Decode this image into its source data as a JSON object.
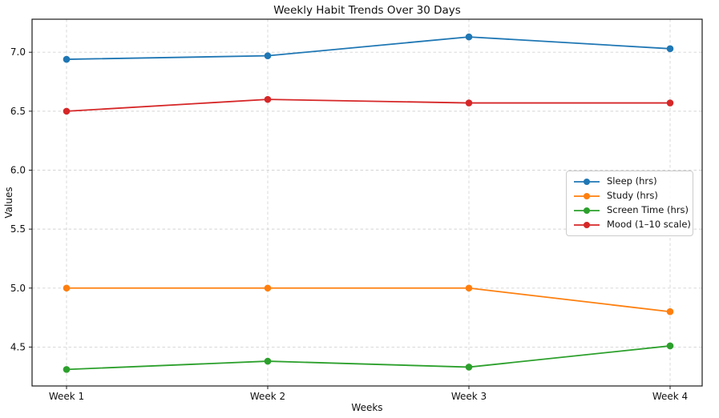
{
  "chart_data": {
    "type": "line",
    "title": "Weekly Habit Trends Over 30 Days",
    "xlabel": "Weeks",
    "ylabel": "Values",
    "categories": [
      "Week 1",
      "Week 2",
      "Week 3",
      "Week 4"
    ],
    "series": [
      {
        "name": "Sleep (hrs)",
        "color": "#1f77b4",
        "values": [
          6.94,
          6.97,
          7.13,
          7.03
        ]
      },
      {
        "name": "Study (hrs)",
        "color": "#ff7f0e",
        "values": [
          5.0,
          5.0,
          5.0,
          4.8
        ]
      },
      {
        "name": "Screen Time (hrs)",
        "color": "#2ca02c",
        "values": [
          4.31,
          4.38,
          4.33,
          4.51
        ]
      },
      {
        "name": "Mood (1–10 scale)",
        "color": "#d62728",
        "values": [
          6.5,
          6.6,
          6.57,
          6.57
        ]
      }
    ],
    "yticks": [
      4.5,
      5.0,
      5.5,
      6.0,
      6.5,
      7.0
    ],
    "ylim": [
      4.17,
      7.28
    ],
    "grid": true,
    "grid_color": "#d4d4d4",
    "spine_color": "#1a1a1a",
    "legend_position": "center right"
  }
}
